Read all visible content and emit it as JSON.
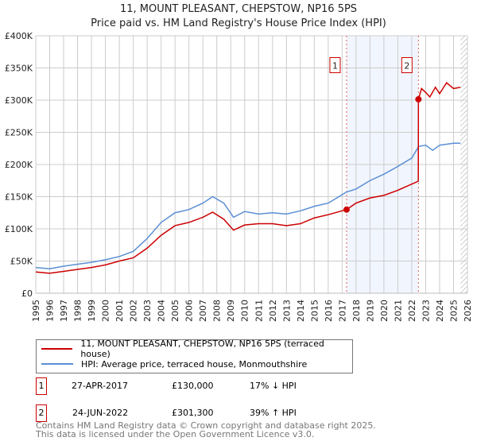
{
  "chart_data": {
    "type": "line",
    "title": "11, MOUNT PLEASANT, CHEPSTOW, NP16 5PS",
    "subtitle": "Price paid vs. HM Land Registry's House Price Index (HPI)",
    "xlim": [
      1995,
      2026
    ],
    "ylim": [
      0,
      400000
    ],
    "yticks": [
      {
        "v": 0,
        "label": "£0"
      },
      {
        "v": 50000,
        "label": "£50K"
      },
      {
        "v": 100000,
        "label": "£100K"
      },
      {
        "v": 150000,
        "label": "£150K"
      },
      {
        "v": 200000,
        "label": "£200K"
      },
      {
        "v": 250000,
        "label": "£250K"
      },
      {
        "v": 300000,
        "label": "£300K"
      },
      {
        "v": 350000,
        "label": "£350K"
      },
      {
        "v": 400000,
        "label": "£400K"
      }
    ],
    "xticks": [
      "1995",
      "1996",
      "1997",
      "1998",
      "1999",
      "2000",
      "2001",
      "2002",
      "2003",
      "2004",
      "2005",
      "2006",
      "2007",
      "2008",
      "2009",
      "2010",
      "2011",
      "2012",
      "2013",
      "2014",
      "2015",
      "2016",
      "2017",
      "2018",
      "2019",
      "2020",
      "2021",
      "2022",
      "2023",
      "2024",
      "2025",
      "2026"
    ],
    "series": [
      {
        "name": "11, MOUNT PLEASANT, CHEPSTOW, NP16 5PS (terraced house)",
        "color": "#cc0000",
        "x": [
          1995,
          1996,
          1997,
          1998,
          1999,
          2000,
          2001,
          2002,
          2003,
          2004,
          2005,
          2006,
          2007,
          2007.7,
          2008.5,
          2009.2,
          2010,
          2011,
          2012,
          2013,
          2014,
          2015,
          2016,
          2017.32,
          2018,
          2019,
          2020,
          2021,
          2022.47,
          2022.48,
          2022.7,
          2023,
          2023.3,
          2023.7,
          2024,
          2024.5,
          2025,
          2025.5
        ],
        "y": [
          33000,
          31000,
          34000,
          37000,
          40000,
          44000,
          50000,
          55000,
          70000,
          90000,
          105000,
          110000,
          118000,
          126000,
          115000,
          98000,
          106000,
          108000,
          108000,
          105000,
          108000,
          117000,
          122000,
          130000,
          140000,
          148000,
          152000,
          160000,
          174000,
          301300,
          318000,
          312000,
          305000,
          320000,
          310000,
          327000,
          318000,
          320000
        ]
      },
      {
        "name": "HPI: Average price, terraced house, Monmouthshire",
        "color": "#5b8fd4",
        "x": [
          1995,
          1996,
          1997,
          1998,
          1999,
          2000,
          2001,
          2002,
          2003,
          2004,
          2005,
          2006,
          2007,
          2007.7,
          2008.5,
          2009.2,
          2010,
          2011,
          2012,
          2013,
          2014,
          2015,
          2016,
          2017.3,
          2018,
          2019,
          2020,
          2021,
          2022,
          2022.5,
          2023,
          2023.5,
          2024,
          2025,
          2025.5
        ],
        "y": [
          40000,
          38000,
          42000,
          45000,
          48000,
          52000,
          57000,
          65000,
          85000,
          110000,
          125000,
          130000,
          140000,
          150000,
          140000,
          118000,
          127000,
          123000,
          125000,
          123000,
          128000,
          135000,
          140000,
          157000,
          162000,
          175000,
          185000,
          197000,
          210000,
          228000,
          230000,
          222000,
          230000,
          233000,
          233000
        ]
      }
    ],
    "sales": [
      {
        "n": "1",
        "x": 2017.32,
        "y": 130000
      },
      {
        "n": "2",
        "x": 2022.48,
        "y": 301300
      }
    ],
    "legend_placement": "bottom"
  },
  "transactions": [
    {
      "n": "1",
      "date": "27-APR-2017",
      "price": "£130,000",
      "hpi": "17% ↓ HPI"
    },
    {
      "n": "2",
      "date": "24-JUN-2022",
      "price": "£301,300",
      "hpi": "39% ↑ HPI"
    }
  ],
  "footer": {
    "line1": "Contains HM Land Registry data © Crown copyright and database right 2025.",
    "line2": "This data is licensed under the Open Government Licence v3.0."
  }
}
